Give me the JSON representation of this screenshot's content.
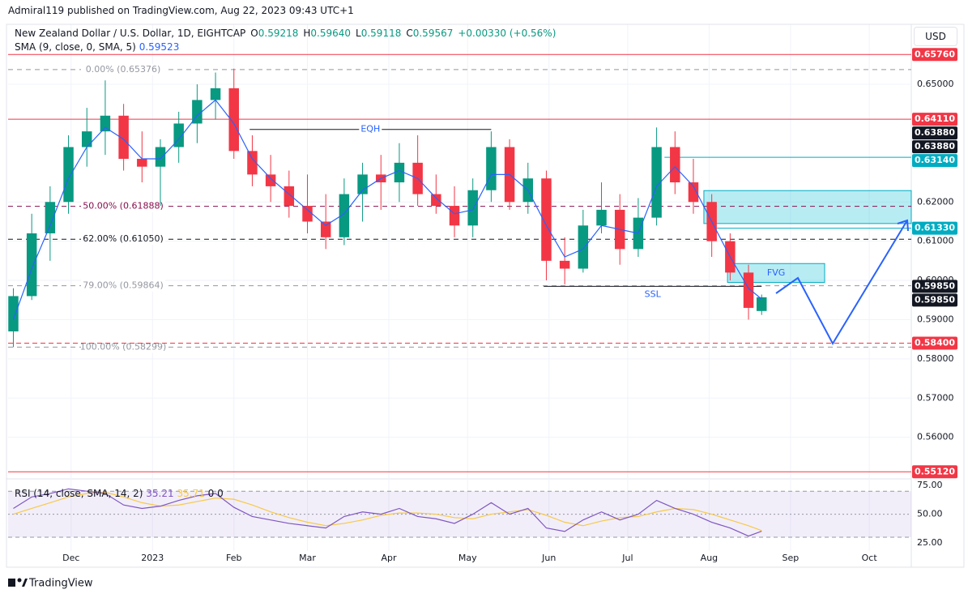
{
  "header": {
    "publisher": "Admiral119 published on TradingView.com, Aug 22, 2023 09:43 UTC+1",
    "currency": "USD",
    "footer": "TradingView"
  },
  "chart_data": {
    "type": "candlestick",
    "symbol": "New Zealand Dollar / U.S. Dollar, 1D, EIGHTCAP",
    "ohlc_legend": [
      {
        "key": "O",
        "value": "0.59218"
      },
      {
        "key": "H",
        "value": "0.59640"
      },
      {
        "key": "L",
        "value": "0.59118"
      },
      {
        "key": "C",
        "value": "0.59567"
      }
    ],
    "change": "+0.00330 (+0.56%)",
    "sma_title": "SMA (9, close, 0, SMA, 5)",
    "up_color": "#089981",
    "down_color": "#f23645",
    "sma_color": "#2962ff",
    "x": [
      -22,
      -15,
      -8,
      -1,
      6,
      13,
      20,
      27,
      34,
      41,
      48,
      55,
      62,
      69,
      76,
      83,
      90,
      97,
      104,
      111,
      118,
      125,
      132,
      139,
      146,
      153,
      160,
      167,
      174,
      181,
      188,
      195,
      202,
      209,
      216,
      223,
      230,
      237,
      244,
      251,
      258,
      263
    ],
    "ohlc": [
      [
        0.587,
        0.598,
        0.583,
        0.596
      ],
      [
        0.596,
        0.617,
        0.595,
        0.612
      ],
      [
        0.612,
        0.624,
        0.605,
        0.62
      ],
      [
        0.62,
        0.637,
        0.617,
        0.634
      ],
      [
        0.634,
        0.644,
        0.629,
        0.638
      ],
      [
        0.638,
        0.651,
        0.632,
        0.642
      ],
      [
        0.642,
        0.645,
        0.628,
        0.631
      ],
      [
        0.631,
        0.638,
        0.625,
        0.629
      ],
      [
        0.629,
        0.636,
        0.619,
        0.634
      ],
      [
        0.634,
        0.643,
        0.63,
        0.64
      ],
      [
        0.64,
        0.65,
        0.635,
        0.646
      ],
      [
        0.646,
        0.653,
        0.641,
        0.649
      ],
      [
        0.649,
        0.654,
        0.631,
        0.633
      ],
      [
        0.633,
        0.637,
        0.624,
        0.627
      ],
      [
        0.627,
        0.632,
        0.62,
        0.624
      ],
      [
        0.624,
        0.628,
        0.616,
        0.619
      ],
      [
        0.619,
        0.627,
        0.612,
        0.615
      ],
      [
        0.615,
        0.622,
        0.608,
        0.611
      ],
      [
        0.611,
        0.626,
        0.609,
        0.622
      ],
      [
        0.622,
        0.63,
        0.615,
        0.627
      ],
      [
        0.627,
        0.632,
        0.618,
        0.625
      ],
      [
        0.625,
        0.635,
        0.62,
        0.63
      ],
      [
        0.63,
        0.637,
        0.619,
        0.622
      ],
      [
        0.622,
        0.627,
        0.617,
        0.619
      ],
      [
        0.619,
        0.624,
        0.611,
        0.614
      ],
      [
        0.614,
        0.626,
        0.611,
        0.623
      ],
      [
        0.623,
        0.638,
        0.62,
        0.634
      ],
      [
        0.634,
        0.636,
        0.618,
        0.62
      ],
      [
        0.62,
        0.63,
        0.617,
        0.626
      ],
      [
        0.626,
        0.628,
        0.6,
        0.605
      ],
      [
        0.605,
        0.611,
        0.599,
        0.603
      ],
      [
        0.603,
        0.618,
        0.602,
        0.614
      ],
      [
        0.614,
        0.625,
        0.612,
        0.618
      ],
      [
        0.618,
        0.622,
        0.604,
        0.608
      ],
      [
        0.608,
        0.621,
        0.606,
        0.616
      ],
      [
        0.616,
        0.639,
        0.614,
        0.634
      ],
      [
        0.634,
        0.638,
        0.622,
        0.625
      ],
      [
        0.625,
        0.631,
        0.617,
        0.62
      ],
      [
        0.62,
        0.622,
        0.606,
        0.61
      ],
      [
        0.61,
        0.612,
        0.6,
        0.602
      ],
      [
        0.602,
        0.604,
        0.59,
        0.593
      ],
      [
        0.5922,
        0.5964,
        0.5912,
        0.5957
      ]
    ],
    "sma": [
      0.59,
      0.603,
      0.614,
      0.626,
      0.634,
      0.639,
      0.636,
      0.631,
      0.631,
      0.636,
      0.642,
      0.646,
      0.64,
      0.631,
      0.626,
      0.622,
      0.618,
      0.614,
      0.617,
      0.623,
      0.626,
      0.628,
      0.626,
      0.621,
      0.617,
      0.618,
      0.627,
      0.627,
      0.623,
      0.614,
      0.606,
      0.608,
      0.614,
      0.613,
      0.612,
      0.624,
      0.629,
      0.624,
      0.615,
      0.606,
      0.598,
      0.59523
    ],
    "xlim": [
      -24,
      320
    ],
    "xticks": [
      {
        "value": 0,
        "label": "Dec"
      },
      {
        "value": 31,
        "label": "2023"
      },
      {
        "value": 62,
        "label": "Feb"
      },
      {
        "value": 90,
        "label": "Mar"
      },
      {
        "value": 121,
        "label": "Apr"
      },
      {
        "value": 151,
        "label": "May"
      },
      {
        "value": 182,
        "label": "Jun"
      },
      {
        "value": 212,
        "label": "Jul"
      },
      {
        "value": 243,
        "label": "Aug"
      },
      {
        "value": 274,
        "label": "Sep"
      },
      {
        "value": 304,
        "label": "Oct"
      }
    ],
    "ylim": [
      0.5496,
      0.6653
    ],
    "yticks": [
      {
        "value": 0.65,
        "label": "0.65000"
      },
      {
        "value": 0.62,
        "label": "0.62000"
      },
      {
        "value": 0.61,
        "label": "0.61000"
      },
      {
        "value": 0.6,
        "label": "0.60000"
      },
      {
        "value": 0.59,
        "label": "0.59000"
      },
      {
        "value": 0.58,
        "label": "0.58000"
      },
      {
        "value": 0.57,
        "label": "0.57000"
      },
      {
        "value": 0.56,
        "label": "0.56000"
      }
    ],
    "fibs": [
      {
        "value": 0.65376,
        "label": "0.00% (0.65376)",
        "color": "#9598a1"
      },
      {
        "value": 0.61888,
        "label": "50.00% (0.61888)",
        "color": "#880e4f"
      },
      {
        "value": 0.6105,
        "label": "62.00% (0.61050)",
        "color": "#131722"
      },
      {
        "value": 0.59864,
        "label": "79.00% (0.59864)",
        "color": "#9598a1"
      },
      {
        "value": 0.58299,
        "label": "100.00% (0.58299)",
        "color": "#9598a1"
      }
    ],
    "levels": [
      {
        "value": 0.6576,
        "label": "0.65760",
        "color": "#f23645",
        "line": "solid"
      },
      {
        "value": 0.6411,
        "label": "0.64110",
        "color": "#f23645",
        "line": "solid"
      },
      {
        "value": 0.6388,
        "label": "0.63880",
        "color": "#131722"
      },
      {
        "value": 0.6388,
        "label": "0.63880",
        "color": "#131722"
      },
      {
        "value": 0.6314,
        "label": "0.63140",
        "color": "#00acc1",
        "line": "solid",
        "from": 226
      },
      {
        "value": 0.6133,
        "label": "0.61330",
        "color": "#00acc1",
        "line": "solid",
        "from": 246
      },
      {
        "value": 0.5985,
        "label": "0.59850",
        "color": "#131722"
      },
      {
        "value": 0.5985,
        "label": "0.59850",
        "color": "#131722"
      },
      {
        "value": 0.584,
        "label": "0.58400",
        "color": "#f23645",
        "line": "dashed"
      },
      {
        "value": 0.5512,
        "label": "0.55120",
        "color": "#f23645",
        "line": "solid"
      }
    ],
    "zones": [
      {
        "top": 0.6229,
        "bottom": 0.6145,
        "from": 241
      },
      {
        "top": 0.6043,
        "bottom": 0.5995,
        "from": 250,
        "to": 287,
        "label": "FVG"
      }
    ],
    "marks": [
      {
        "value": 0.6385,
        "from": 68,
        "to": 160,
        "label": "EQH",
        "color": "#131722"
      },
      {
        "value": 0.5985,
        "from": 180,
        "to": 263,
        "label": "SSL",
        "color": "#131722"
      }
    ],
    "rsi": {
      "title": "RSI (14, close, SMA, 14, 2)",
      "color": "#7e57c2",
      "ma_color": "#f7c948",
      "values": [
        55,
        65,
        68,
        72,
        70,
        68,
        58,
        55,
        57,
        62,
        66,
        68,
        56,
        48,
        45,
        42,
        40,
        38,
        48,
        52,
        50,
        55,
        48,
        46,
        42,
        50,
        60,
        50,
        55,
        38,
        35,
        45,
        52,
        45,
        50,
        62,
        55,
        50,
        43,
        38,
        31,
        35.21
      ],
      "ma": [
        50,
        55,
        60,
        65,
        68,
        69,
        65,
        60,
        57,
        58,
        61,
        64,
        63,
        58,
        52,
        47,
        43,
        40,
        42,
        45,
        49,
        51,
        51,
        50,
        47,
        46,
        50,
        52,
        54,
        49,
        43,
        40,
        44,
        47,
        48,
        52,
        55,
        54,
        50,
        45,
        40,
        35.71
      ],
      "extra": [
        0,
        0
      ],
      "ylim": [
        18,
        80
      ],
      "yticks": [
        {
          "value": 75,
          "label": "75.00"
        },
        {
          "value": 50,
          "label": "50.00"
        },
        {
          "value": 25,
          "label": "25.00"
        }
      ],
      "bands": [
        70,
        50,
        30
      ]
    }
  }
}
